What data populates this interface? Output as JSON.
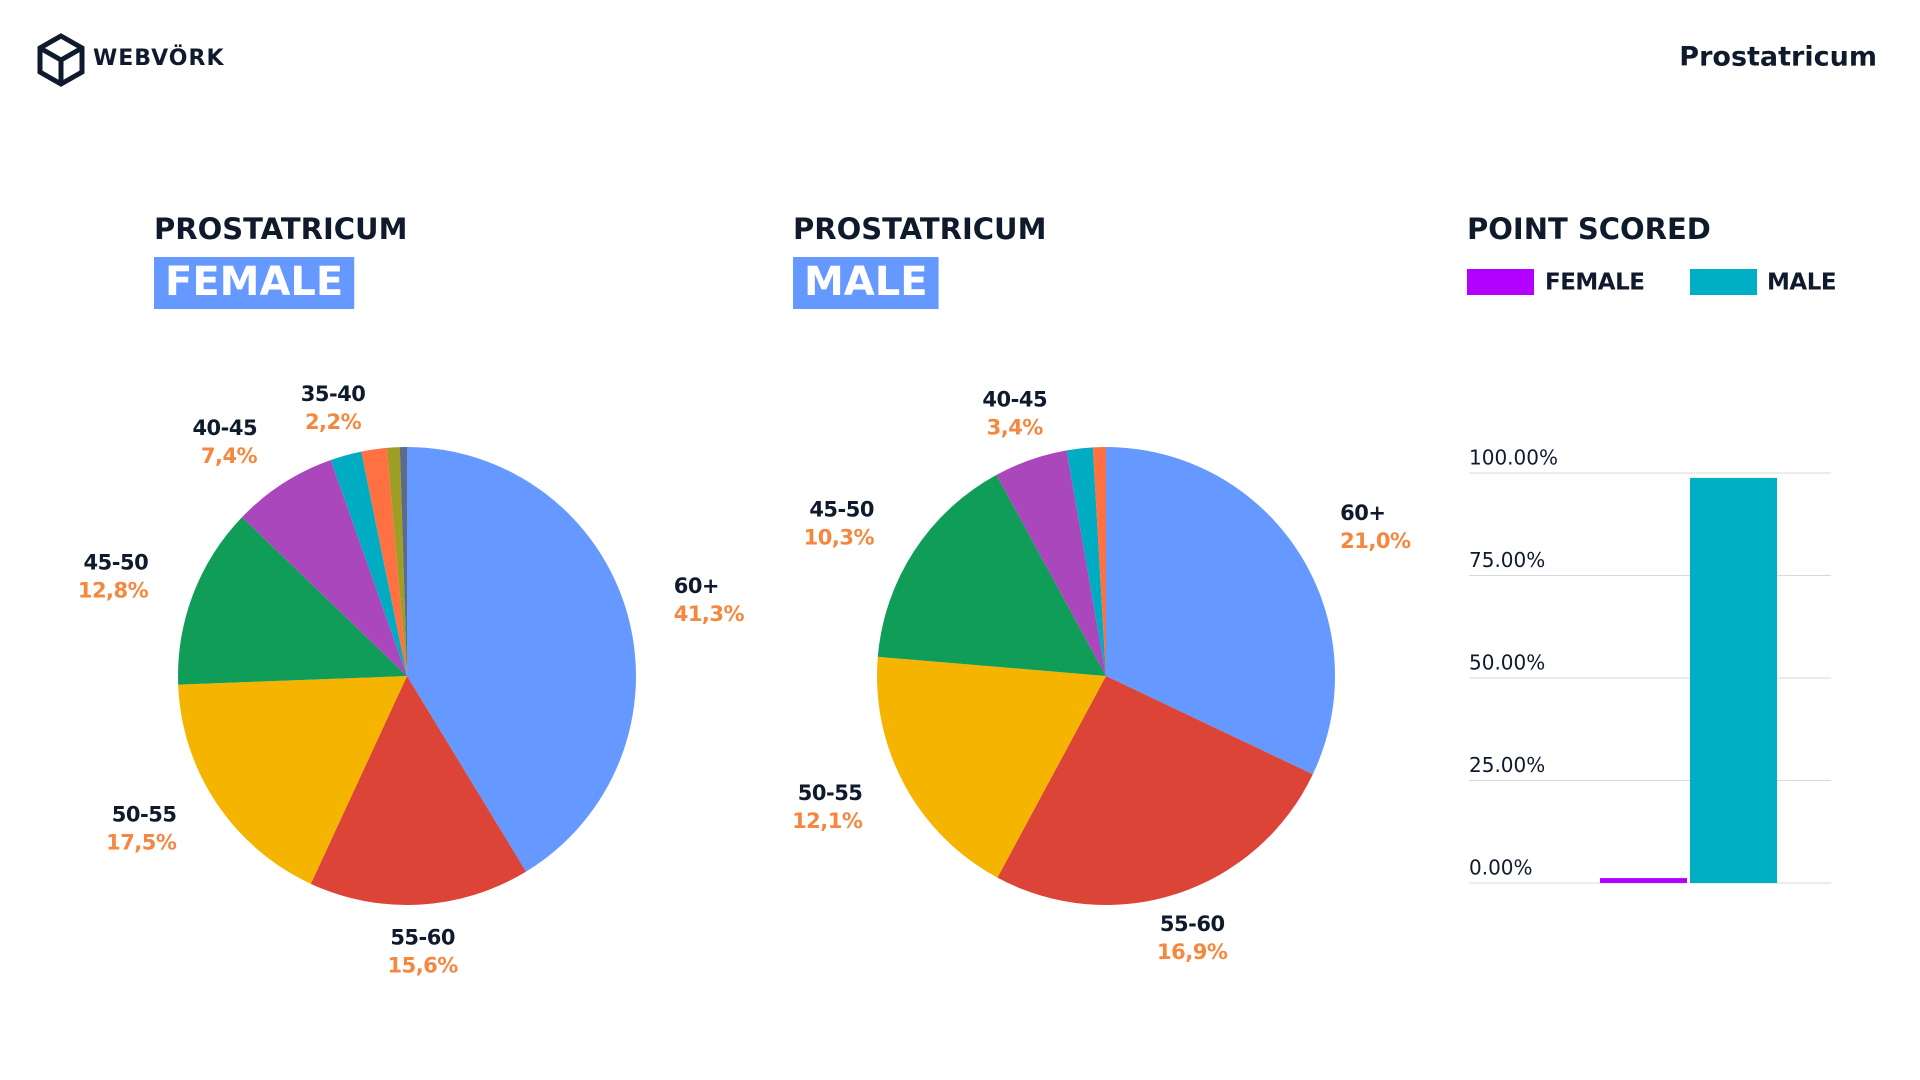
{
  "header": {
    "brand": "WEBVÖRK",
    "product": "Prostatricum"
  },
  "chart_data": [
    {
      "type": "pie",
      "title": "PROSTATRICUM",
      "subtitle": "FEMALE",
      "categories": [
        "60+",
        "55-60",
        "50-55",
        "45-50",
        "40-45",
        "35-40",
        null,
        null,
        null
      ],
      "values": [
        41.3,
        15.6,
        17.5,
        12.8,
        7.4,
        2.2,
        1.8,
        0.9,
        0.5
      ],
      "value_labels": [
        "41,3%",
        "15,6%",
        "17,5%",
        "12,8%",
        "7,4%",
        "2,2%",
        null,
        null,
        null
      ],
      "colors": [
        "#6699ff",
        "#db4437",
        "#f4b400",
        "#0f9d58",
        "#ab47bc",
        "#00acc1",
        "#ff7043",
        "#9e9d24",
        "#5c6b8a"
      ]
    },
    {
      "type": "pie",
      "title": "PROSTATRICUM",
      "subtitle": "MALE",
      "categories": [
        "60+",
        "55-60",
        "50-55",
        "45-50",
        "40-45",
        null,
        null
      ],
      "values": [
        21.0,
        16.9,
        12.1,
        10.3,
        3.4,
        1.2,
        0.6
      ],
      "value_labels": [
        "21,0%",
        "16,9%",
        "12,1%",
        "10,3%",
        "3,4%",
        null,
        null
      ],
      "colors": [
        "#6699ff",
        "#db4437",
        "#f4b400",
        "#0f9d58",
        "#ab47bc",
        "#00acc1",
        "#ff7043"
      ]
    },
    {
      "type": "bar",
      "title": "POINT SCORED",
      "series": [
        {
          "name": "FEMALE",
          "color": "#b300ff",
          "values": [
            1.2
          ]
        },
        {
          "name": "MALE",
          "color": "#00aec6",
          "values": [
            98.8
          ]
        }
      ],
      "ylim": [
        0,
        100
      ],
      "yticks": [
        {
          "value": 0,
          "label": "0.00%"
        },
        {
          "value": 25,
          "label": "25.00%"
        },
        {
          "value": 50,
          "label": "50.00%"
        },
        {
          "value": 75,
          "label": "75.00%"
        },
        {
          "value": 100,
          "label": "100.00%"
        }
      ],
      "grid": true
    }
  ]
}
